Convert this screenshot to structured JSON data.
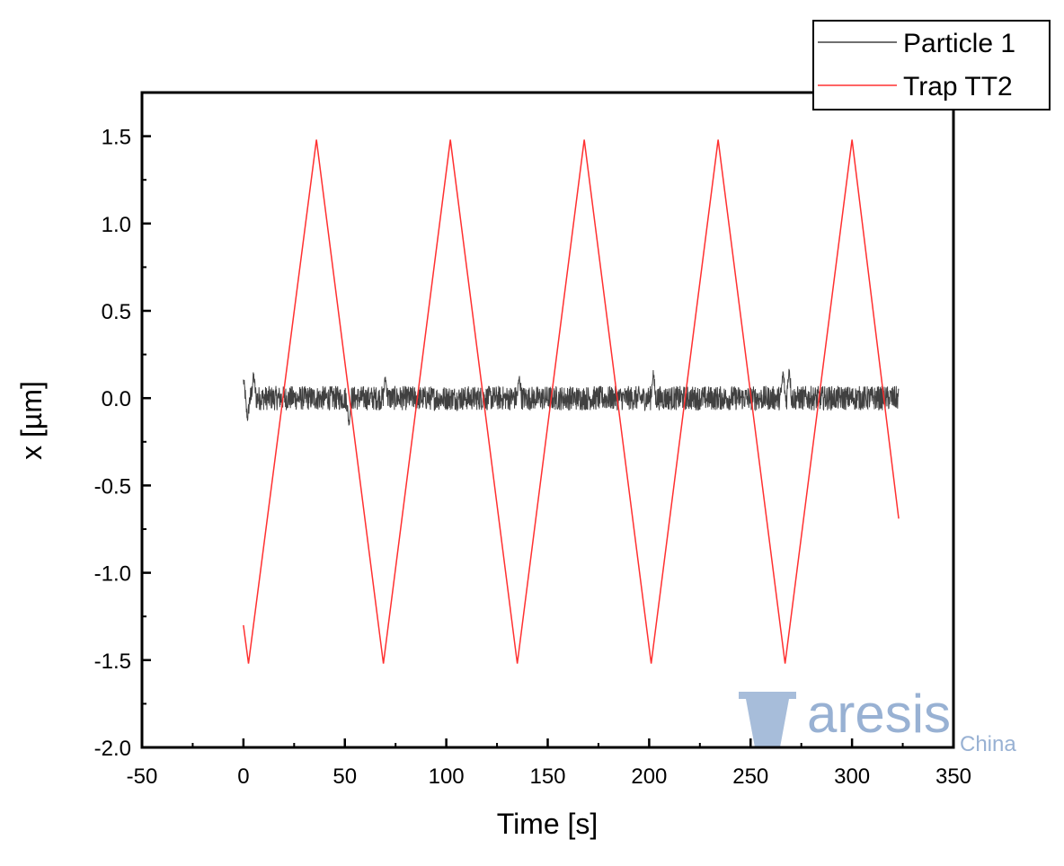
{
  "chart_data": {
    "type": "line",
    "xlabel": "Time [s]",
    "ylabel": "x [µm]",
    "xlim": [
      -50,
      350
    ],
    "ylim": [
      -2.0,
      1.75
    ],
    "xticks": [
      -50,
      0,
      50,
      100,
      150,
      200,
      250,
      300,
      350
    ],
    "xtick_labels": [
      "-50",
      "0",
      "50",
      "100",
      "150",
      "200",
      "250",
      "300",
      "350"
    ],
    "yticks": [
      -2.0,
      -1.5,
      -1.0,
      -0.5,
      0.0,
      0.5,
      1.0,
      1.5
    ],
    "ytick_labels": [
      "-2.0",
      "-1.5",
      "-1.0",
      "-0.5",
      "0.0",
      "0.5",
      "1.0",
      "1.5"
    ],
    "grid": false,
    "legend_position": "top-right",
    "series": [
      {
        "name": "Particle 1",
        "color": "#404040",
        "style": "noisy",
        "x_range": [
          0,
          323
        ],
        "baseline": 0.0,
        "amplitude": 0.07,
        "excursions": [
          {
            "x": 0,
            "y": 0.1
          },
          {
            "x": 2,
            "y": -0.12
          },
          {
            "x": 5,
            "y": 0.14
          },
          {
            "x": 52,
            "y": -0.15
          },
          {
            "x": 70,
            "y": 0.12
          },
          {
            "x": 136,
            "y": 0.12
          },
          {
            "x": 202,
            "y": 0.15
          },
          {
            "x": 266,
            "y": 0.15
          },
          {
            "x": 269,
            "y": 0.18
          }
        ]
      },
      {
        "name": "Trap TT2",
        "color": "#ff3030",
        "x": [
          0,
          2.5,
          36,
          69,
          102,
          135,
          168,
          201,
          234,
          267,
          300,
          323
        ],
        "y": [
          -1.3,
          -1.52,
          1.48,
          -1.52,
          1.48,
          -1.52,
          1.48,
          -1.52,
          1.48,
          -1.52,
          1.48,
          -0.69
        ]
      }
    ]
  },
  "watermark": {
    "text": "aresis",
    "subtext": "China",
    "color": "#98b1d3"
  }
}
